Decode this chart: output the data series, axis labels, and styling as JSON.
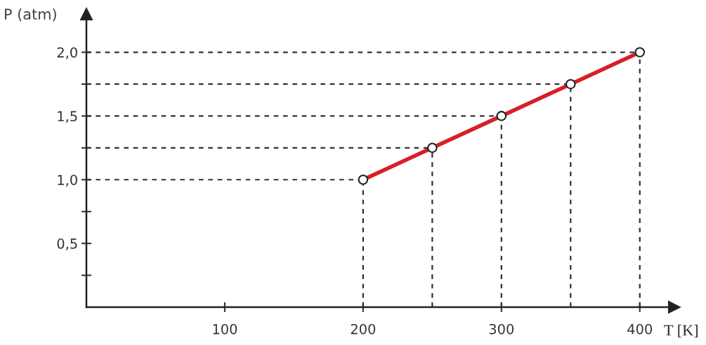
{
  "chart_data": {
    "type": "line",
    "xlabel": "T [K]",
    "ylabel": "P (atm)",
    "x": [
      200,
      250,
      300,
      350,
      400
    ],
    "series": [
      {
        "color": "#d62027",
        "values": [
          1.0,
          1.25,
          1.5,
          1.75,
          2.0
        ]
      }
    ],
    "ref_lines": [
      {
        "axis": "y",
        "value": 1.0,
        "color": "#333333",
        "line_style": "dashed"
      },
      {
        "axis": "y",
        "value": 1.25,
        "color": "#333333",
        "line_style": "dashed"
      },
      {
        "axis": "y",
        "value": 1.5,
        "color": "#333333",
        "line_style": "dashed"
      },
      {
        "axis": "y",
        "value": 1.75,
        "color": "#333333",
        "line_style": "dashed"
      },
      {
        "axis": "y",
        "value": 2.0,
        "color": "#333333",
        "line_style": "dashed"
      },
      {
        "axis": "x",
        "value": 200,
        "color": "#333333",
        "line_style": "dashed"
      },
      {
        "axis": "x",
        "value": 250,
        "color": "#333333",
        "line_style": "dashed"
      },
      {
        "axis": "x",
        "value": 300,
        "color": "#333333",
        "line_style": "dashed"
      },
      {
        "axis": "x",
        "value": 350,
        "color": "#333333",
        "line_style": "dashed"
      },
      {
        "axis": "x",
        "value": 400,
        "color": "#333333",
        "line_style": "dashed"
      }
    ],
    "marker": "circle",
    "line_style": "solid",
    "grid": false,
    "legend": false,
    "xlim": [
      0,
      425
    ],
    "ylim": [
      0,
      2.3
    ],
    "xticks": [
      100,
      200,
      300,
      400
    ],
    "yticks": [
      {
        "value": 0.25,
        "label": null
      },
      {
        "value": 0.5,
        "label": "0,5"
      },
      {
        "value": 0.75,
        "label": null
      },
      {
        "value": 1.0,
        "label": "1,0"
      },
      {
        "value": 1.25,
        "label": null
      },
      {
        "value": 1.5,
        "label": "1,5"
      },
      {
        "value": 1.75,
        "label": null
      },
      {
        "value": 2.0,
        "label": "2,0"
      }
    ]
  }
}
